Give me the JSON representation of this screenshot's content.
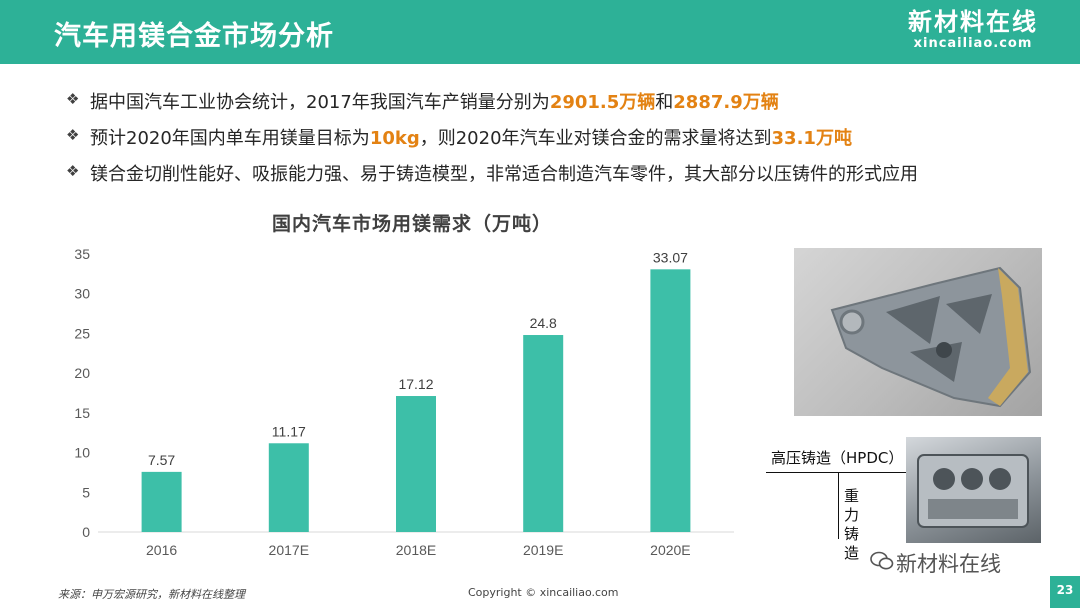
{
  "header": {
    "title": "汽车用镁合金市场分析",
    "logo_cn": "新材料在线",
    "logo_url": "xincailiao.com",
    "color": "#2db197"
  },
  "bullets": [
    {
      "icon": "diamond-bullet-icon",
      "parts": [
        {
          "text": "据中国汽车工业协会统计，2017年我国汽车产销量分别为",
          "hl": false
        },
        {
          "text": "2901.5万辆",
          "hl": true
        },
        {
          "text": "和",
          "hl": false
        },
        {
          "text": "2887.9万辆",
          "hl": true
        }
      ]
    },
    {
      "icon": "diamond-bullet-icon",
      "parts": [
        {
          "text": "预计2020年国内单车用镁量目标为",
          "hl": false
        },
        {
          "text": "10kg",
          "hl": true
        },
        {
          "text": "，则2020年汽车业对镁合金的需求量将达到",
          "hl": false
        },
        {
          "text": "33.1万吨",
          "hl": true
        }
      ]
    },
    {
      "icon": "diamond-bullet-icon",
      "parts": [
        {
          "text": "镁合金切削性能好、吸振能力强、易于铸造模型，非常适合制造汽车零件，其大部分以压铸件的形式应用",
          "hl": false
        }
      ]
    }
  ],
  "highlight_color": "#e38213",
  "chart_data": {
    "type": "bar",
    "title": "国内汽车市场用镁需求（万吨）",
    "categories": [
      "2016",
      "2017E",
      "2018E",
      "2019E",
      "2020E"
    ],
    "values": [
      7.57,
      11.17,
      17.12,
      24.8,
      33.07
    ],
    "value_labels": [
      "7.57",
      "11.17",
      "17.12",
      "24.8",
      "33.07"
    ],
    "ylim": [
      0,
      35
    ],
    "yticks": [
      "0",
      "5",
      "10",
      "15",
      "20",
      "25",
      "30",
      "35"
    ],
    "grid": false,
    "bar_color": "#3dbfa8"
  },
  "images": {
    "hpdc_label": "高压铸造（HPDC）",
    "gravity_label": "重力铸造"
  },
  "footer": {
    "source": "来源：申万宏源研究，新材料在线整理",
    "copyright": "Copyright © xincailiao.com",
    "page_number": "23",
    "wechat_label": "新材料在线",
    "wechat_icon": "wechat-icon"
  }
}
